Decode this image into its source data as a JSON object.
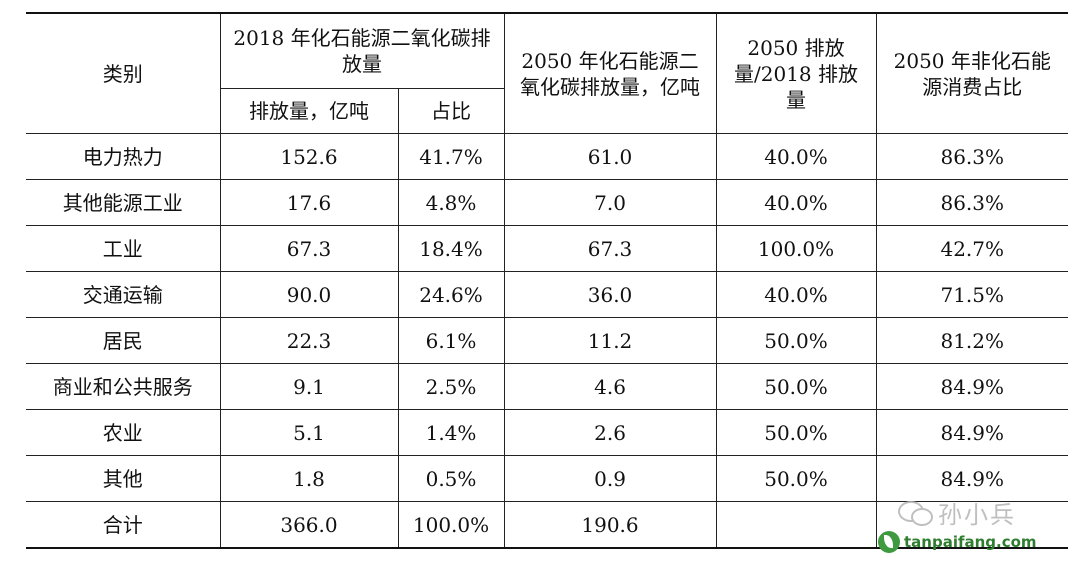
{
  "header": {
    "category": "类别",
    "emissions_2018_group": "2018 年化石能源二氧化碳排放量",
    "emissions_2018_amount": "排放量，亿吨",
    "emissions_2018_share": "占比",
    "emissions_2050": "2050 年化石能源二氧化碳排放量，亿吨",
    "ratio_2050_2018": "2050 排放量/2018 排放量",
    "nonfossil_share_2050": "2050 年非化石能源消费占比"
  },
  "rows": [
    {
      "category": "电力热力",
      "amount_2018": "152.6",
      "share_2018": "41.7%",
      "amount_2050": "61.0",
      "ratio": "40.0%",
      "nonfossil": "86.3%"
    },
    {
      "category": "其他能源工业",
      "amount_2018": "17.6",
      "share_2018": "4.8%",
      "amount_2050": "7.0",
      "ratio": "40.0%",
      "nonfossil": "86.3%"
    },
    {
      "category": "工业",
      "amount_2018": "67.3",
      "share_2018": "18.4%",
      "amount_2050": "67.3",
      "ratio": "100.0%",
      "nonfossil": "42.7%"
    },
    {
      "category": "交通运输",
      "amount_2018": "90.0",
      "share_2018": "24.6%",
      "amount_2050": "36.0",
      "ratio": "40.0%",
      "nonfossil": "71.5%"
    },
    {
      "category": "居民",
      "amount_2018": "22.3",
      "share_2018": "6.1%",
      "amount_2050": "11.2",
      "ratio": "50.0%",
      "nonfossil": "81.2%"
    },
    {
      "category": "商业和公共服务",
      "amount_2018": "9.1",
      "share_2018": "2.5%",
      "amount_2050": "4.6",
      "ratio": "50.0%",
      "nonfossil": "84.9%"
    },
    {
      "category": "农业",
      "amount_2018": "5.1",
      "share_2018": "1.4%",
      "amount_2050": "2.6",
      "ratio": "50.0%",
      "nonfossil": "84.9%"
    },
    {
      "category": "其他",
      "amount_2018": "1.8",
      "share_2018": "0.5%",
      "amount_2050": "0.9",
      "ratio": "50.0%",
      "nonfossil": "84.9%"
    }
  ],
  "total": {
    "category": "合计",
    "amount_2018": "366.0",
    "share_2018": "100.0%",
    "amount_2050": "190.6",
    "ratio": "",
    "nonfossil": ""
  },
  "watermark": {
    "wechat_text": "孙小兵",
    "wechat_icon": "wechat-icon",
    "site_text": "tanpaifang.com",
    "site_icon": "leaf-icon",
    "site_color": "#2f7d2f"
  }
}
